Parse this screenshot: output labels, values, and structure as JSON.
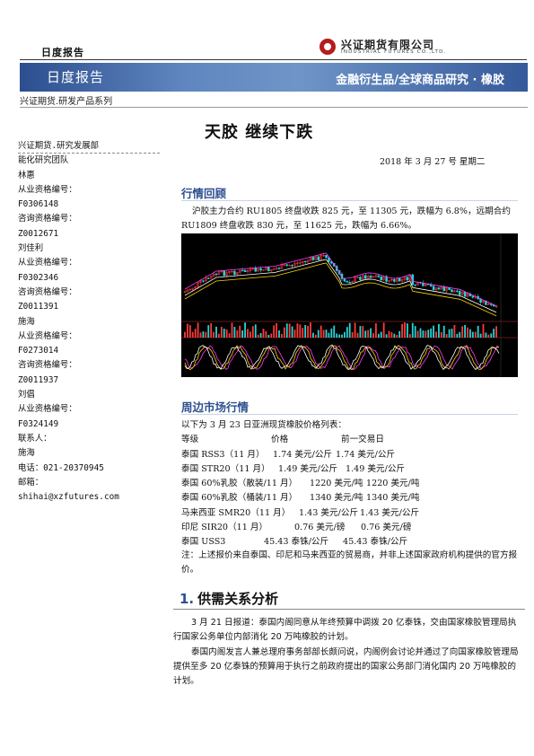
{
  "header": {
    "report_type": "日度报告",
    "company_cn": "兴证期货有限公司",
    "company_en": "INDUSTRIAL FUTURES CO.,LTD.",
    "banner_left": "日度报告",
    "banner_right": "金融衍生品/全球商品研究 · 橡胶",
    "series": "兴证期货.研发产品系列"
  },
  "title": "天胶  继续下跌",
  "date": "2018 年 3 月 27 号  星期二",
  "sidebar": [
    "兴证期货.研究发展部",
    "能化研究团队",
    "林惠",
    "从业资格编号：",
    "F0306148",
    "咨询资格编号：",
    "Z0012671",
    "刘佳利",
    "从业资格编号：",
    "F0302346",
    "咨询资格编号：",
    "Z0011391",
    "施海",
    "从业资格编号：",
    "F0273014",
    "咨询资格编号：",
    "Z0011937",
    "刘倡",
    "从业资格编号：",
    "F0324149",
    "联系人：",
    "施海",
    "电话：021-20370945",
    "邮箱：",
    "shihai@xzfutures.com"
  ],
  "market_review": {
    "heading": "行情回顾",
    "text": "沪胶主力合约 RU1805 终盘收跌 825 元，至 11305 元，跌幅为 6.8%，远期合约 RU1809 终盘收跌 830 元，至 11625 元，跌幅为 6.66%。"
  },
  "peripheral": {
    "heading": "周边市场行情",
    "intro": "以下为 3 月 23 日亚洲现货橡胶价格列表：",
    "columns": [
      "等级",
      "价格",
      "前一交易日"
    ],
    "rows": [
      [
        "泰国 RSS3（11 月）",
        "1.74 美元/公斤",
        "1.74 美元/公斤"
      ],
      [
        "泰国 STR20（11 月）",
        "1.49 美元/公斤",
        "1.49 美元/公斤"
      ],
      [
        "泰国 60%乳胶（散装/11 月）",
        "1220 美元/吨",
        "1220 美元/吨"
      ],
      [
        "泰国 60%乳胶（桶装/11 月）",
        "1340 美元/吨",
        "1340 美元/吨"
      ],
      [
        "马来西亚 SMR20（11 月）",
        "1.43 美元/公斤",
        "1.43 美元/公斤"
      ],
      [
        "印尼 SIR20（11 月）",
        "0.76 美元/磅",
        "0.76 美元/磅"
      ],
      [
        "泰国 USS3",
        "45.43 泰铢/公斤",
        "45.43 泰铢/公斤"
      ]
    ],
    "note": "注：上述报价来自泰国、印尼和马来西亚的贸易商，并非上述国家政府机构提供的官方报价。"
  },
  "section1": {
    "number": "1.",
    "heading": "供需关系分析",
    "p1": "3 月 21 日报道：泰国内阁同意从年终预算中调拨 20 亿泰铢，交由国家橡胶管理局执行国家公务单位内部消化 20 万吨橡胶的计划。",
    "p2": "泰国内阁发言人兼总理府事务部部长颇问说，内阁例会讨论并通过了向国家橡胶管理局提供至多 20 亿泰铢的预算用于执行之前政府提出的国家公务部门消化国内 20 万吨橡胶的计划。"
  },
  "colors": {
    "banner": "#4a72ad",
    "accent": "#2d4f8f",
    "logo_red": "#b51c1c",
    "chart_bg": "#000000"
  }
}
